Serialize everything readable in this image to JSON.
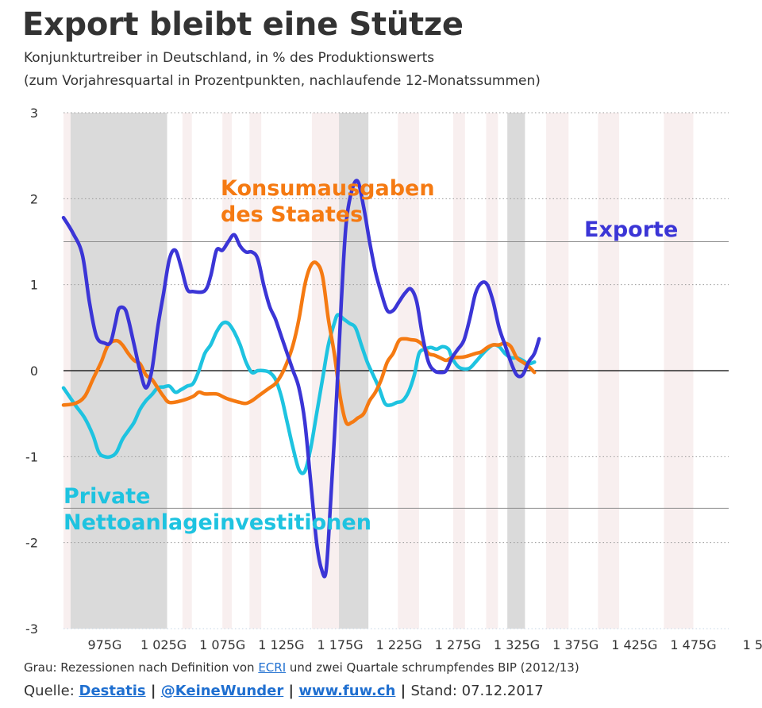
{
  "title": "Export bleibt eine Stütze",
  "subtitle1": "Konjunkturtreiber in Deutschland, in % des Produktionswerts",
  "subtitle2": "(zum Vorjahresquartal in Prozentpunkten, nachlaufende 12-Monatssummen)",
  "note": {
    "before": "Grau: Rezessionen nach Definition von ",
    "link": "ECRI",
    "after": " und zwei Quartale schrumpfendes BIP (2012/13)"
  },
  "source": {
    "label": "Quelle: ",
    "link1": "Destatis",
    "sep1": " | ",
    "link2": "@KeineWunder",
    "sep2": " | ",
    "link3": "www.fuw.ch",
    "sep3": " | ",
    "stand": "Stand: 07.12.2017"
  },
  "colors": {
    "exporte": "#3b35d6",
    "konsum": "#f57a12",
    "private": "#1ec3e0",
    "recession": "#dadada",
    "band": "#f8efef",
    "grid": "#999999",
    "zero": "#000000"
  },
  "chart_data": {
    "type": "line",
    "ylim": [
      -3,
      3
    ],
    "xlim": [
      940,
      1505
    ],
    "grid": true,
    "y_ticks": [
      3,
      2,
      1,
      0,
      -1,
      -2,
      -3
    ],
    "y_tick_labels": [
      "3",
      "2",
      "1",
      "0",
      "-1",
      "-2",
      "-3"
    ],
    "x_ticks": [
      975,
      1025,
      1075,
      1125,
      1175,
      1225,
      1275,
      1325,
      1375,
      1425,
      1475,
      1525
    ],
    "x_tick_labels": [
      "975G",
      "1 025G",
      "1 075G",
      "1 125G",
      "1 175G",
      "1 225G",
      "1 275G",
      "1 325G",
      "1 375G",
      "1 425G",
      "1 475G",
      "1 5"
    ],
    "recessions": [
      [
        946,
        1028
      ],
      [
        1174,
        1199
      ],
      [
        1317,
        1332
      ]
    ],
    "bands": [
      [
        940,
        946
      ],
      [
        980,
        986
      ],
      [
        1004,
        1011
      ],
      [
        1041,
        1049
      ],
      [
        1075,
        1083
      ],
      [
        1098,
        1108
      ],
      [
        1151,
        1174
      ],
      [
        1224,
        1242
      ],
      [
        1271,
        1281
      ],
      [
        1299,
        1309
      ],
      [
        1350,
        1369
      ],
      [
        1394,
        1412
      ],
      [
        1450,
        1475
      ]
    ],
    "series": [
      {
        "name": "Exporte",
        "color": "#3b35d6",
        "points": [
          [
            940,
            1.78
          ],
          [
            948,
            1.6
          ],
          [
            956,
            1.35
          ],
          [
            962,
            0.8
          ],
          [
            968,
            0.4
          ],
          [
            975,
            0.32
          ],
          [
            980,
            0.33
          ],
          [
            984,
            0.55
          ],
          [
            987,
            0.72
          ],
          [
            992,
            0.72
          ],
          [
            995,
            0.6
          ],
          [
            1000,
            0.3
          ],
          [
            1005,
            0.0
          ],
          [
            1010,
            -0.2
          ],
          [
            1015,
            0.0
          ],
          [
            1020,
            0.5
          ],
          [
            1025,
            0.9
          ],
          [
            1030,
            1.3
          ],
          [
            1035,
            1.4
          ],
          [
            1040,
            1.2
          ],
          [
            1045,
            0.95
          ],
          [
            1050,
            0.92
          ],
          [
            1060,
            0.93
          ],
          [
            1065,
            1.1
          ],
          [
            1070,
            1.4
          ],
          [
            1075,
            1.4
          ],
          [
            1080,
            1.5
          ],
          [
            1085,
            1.58
          ],
          [
            1090,
            1.45
          ],
          [
            1095,
            1.38
          ],
          [
            1100,
            1.38
          ],
          [
            1105,
            1.3
          ],
          [
            1110,
            1.0
          ],
          [
            1115,
            0.75
          ],
          [
            1120,
            0.6
          ],
          [
            1125,
            0.4
          ],
          [
            1130,
            0.2
          ],
          [
            1135,
            0.0
          ],
          [
            1140,
            -0.2
          ],
          [
            1145,
            -0.6
          ],
          [
            1150,
            -1.3
          ],
          [
            1155,
            -2.0
          ],
          [
            1159,
            -2.3
          ],
          [
            1163,
            -2.33
          ],
          [
            1167,
            -1.5
          ],
          [
            1172,
            -0.3
          ],
          [
            1176,
            0.8
          ],
          [
            1180,
            1.7
          ],
          [
            1185,
            2.1
          ],
          [
            1190,
            2.2
          ],
          [
            1195,
            1.9
          ],
          [
            1200,
            1.5
          ],
          [
            1205,
            1.15
          ],
          [
            1210,
            0.9
          ],
          [
            1215,
            0.7
          ],
          [
            1220,
            0.7
          ],
          [
            1225,
            0.8
          ],
          [
            1230,
            0.9
          ],
          [
            1235,
            0.95
          ],
          [
            1240,
            0.8
          ],
          [
            1245,
            0.4
          ],
          [
            1250,
            0.1
          ],
          [
            1255,
            0.0
          ],
          [
            1260,
            -0.02
          ],
          [
            1265,
            0.0
          ],
          [
            1270,
            0.15
          ],
          [
            1275,
            0.25
          ],
          [
            1280,
            0.35
          ],
          [
            1285,
            0.6
          ],
          [
            1290,
            0.9
          ],
          [
            1295,
            1.02
          ],
          [
            1300,
            1.0
          ],
          [
            1305,
            0.8
          ],
          [
            1310,
            0.5
          ],
          [
            1315,
            0.3
          ],
          [
            1320,
            0.1
          ],
          [
            1325,
            -0.05
          ],
          [
            1330,
            -0.05
          ],
          [
            1335,
            0.1
          ],
          [
            1340,
            0.2
          ],
          [
            1344,
            0.37
          ]
        ]
      },
      {
        "name": "Konsumausgaben des Staates",
        "color": "#f57a12",
        "points": [
          [
            940,
            -0.4
          ],
          [
            950,
            -0.38
          ],
          [
            958,
            -0.3
          ],
          [
            965,
            -0.1
          ],
          [
            972,
            0.1
          ],
          [
            978,
            0.3
          ],
          [
            985,
            0.35
          ],
          [
            990,
            0.3
          ],
          [
            995,
            0.2
          ],
          [
            1000,
            0.12
          ],
          [
            1005,
            0.08
          ],
          [
            1010,
            -0.05
          ],
          [
            1015,
            -0.1
          ],
          [
            1020,
            -0.2
          ],
          [
            1025,
            -0.3
          ],
          [
            1030,
            -0.37
          ],
          [
            1040,
            -0.35
          ],
          [
            1050,
            -0.3
          ],
          [
            1055,
            -0.25
          ],
          [
            1060,
            -0.27
          ],
          [
            1070,
            -0.27
          ],
          [
            1075,
            -0.3
          ],
          [
            1080,
            -0.33
          ],
          [
            1090,
            -0.37
          ],
          [
            1095,
            -0.38
          ],
          [
            1100,
            -0.35
          ],
          [
            1105,
            -0.3
          ],
          [
            1110,
            -0.25
          ],
          [
            1115,
            -0.2
          ],
          [
            1120,
            -0.15
          ],
          [
            1125,
            -0.05
          ],
          [
            1130,
            0.1
          ],
          [
            1135,
            0.3
          ],
          [
            1140,
            0.6
          ],
          [
            1145,
            1.0
          ],
          [
            1150,
            1.22
          ],
          [
            1155,
            1.25
          ],
          [
            1160,
            1.1
          ],
          [
            1165,
            0.6
          ],
          [
            1170,
            0.2
          ],
          [
            1175,
            -0.3
          ],
          [
            1180,
            -0.6
          ],
          [
            1185,
            -0.6
          ],
          [
            1190,
            -0.55
          ],
          [
            1195,
            -0.5
          ],
          [
            1200,
            -0.35
          ],
          [
            1205,
            -0.25
          ],
          [
            1210,
            -0.1
          ],
          [
            1215,
            0.1
          ],
          [
            1220,
            0.2
          ],
          [
            1225,
            0.35
          ],
          [
            1230,
            0.37
          ],
          [
            1235,
            0.36
          ],
          [
            1240,
            0.35
          ],
          [
            1245,
            0.3
          ],
          [
            1250,
            0.2
          ],
          [
            1255,
            0.18
          ],
          [
            1260,
            0.15
          ],
          [
            1265,
            0.12
          ],
          [
            1270,
            0.15
          ],
          [
            1280,
            0.16
          ],
          [
            1290,
            0.2
          ],
          [
            1295,
            0.22
          ],
          [
            1300,
            0.27
          ],
          [
            1305,
            0.3
          ],
          [
            1310,
            0.3
          ],
          [
            1315,
            0.32
          ],
          [
            1320,
            0.28
          ],
          [
            1325,
            0.15
          ],
          [
            1330,
            0.1
          ],
          [
            1335,
            0.05
          ],
          [
            1340,
            -0.02
          ]
        ]
      },
      {
        "name": "Private Nettoanlageinvestitionen",
        "color": "#1ec3e0",
        "points": [
          [
            940,
            -0.2
          ],
          [
            950,
            -0.4
          ],
          [
            958,
            -0.55
          ],
          [
            965,
            -0.75
          ],
          [
            970,
            -0.95
          ],
          [
            975,
            -1.0
          ],
          [
            980,
            -1.0
          ],
          [
            985,
            -0.95
          ],
          [
            990,
            -0.8
          ],
          [
            995,
            -0.7
          ],
          [
            1000,
            -0.6
          ],
          [
            1005,
            -0.45
          ],
          [
            1010,
            -0.35
          ],
          [
            1015,
            -0.28
          ],
          [
            1020,
            -0.2
          ],
          [
            1025,
            -0.19
          ],
          [
            1030,
            -0.18
          ],
          [
            1035,
            -0.25
          ],
          [
            1040,
            -0.22
          ],
          [
            1045,
            -0.18
          ],
          [
            1050,
            -0.15
          ],
          [
            1055,
            0.0
          ],
          [
            1060,
            0.2
          ],
          [
            1065,
            0.3
          ],
          [
            1070,
            0.45
          ],
          [
            1075,
            0.55
          ],
          [
            1080,
            0.55
          ],
          [
            1085,
            0.45
          ],
          [
            1090,
            0.3
          ],
          [
            1095,
            0.1
          ],
          [
            1100,
            -0.02
          ],
          [
            1105,
            0.0
          ],
          [
            1110,
            0.0
          ],
          [
            1115,
            -0.02
          ],
          [
            1120,
            -0.1
          ],
          [
            1125,
            -0.3
          ],
          [
            1130,
            -0.6
          ],
          [
            1135,
            -0.9
          ],
          [
            1140,
            -1.15
          ],
          [
            1145,
            -1.17
          ],
          [
            1150,
            -0.9
          ],
          [
            1155,
            -0.5
          ],
          [
            1160,
            -0.1
          ],
          [
            1165,
            0.3
          ],
          [
            1170,
            0.55
          ],
          [
            1173,
            0.65
          ],
          [
            1178,
            0.6
          ],
          [
            1183,
            0.55
          ],
          [
            1188,
            0.5
          ],
          [
            1193,
            0.3
          ],
          [
            1198,
            0.1
          ],
          [
            1203,
            -0.05
          ],
          [
            1208,
            -0.2
          ],
          [
            1213,
            -0.38
          ],
          [
            1218,
            -0.4
          ],
          [
            1223,
            -0.37
          ],
          [
            1228,
            -0.35
          ],
          [
            1233,
            -0.25
          ],
          [
            1238,
            -0.05
          ],
          [
            1242,
            0.2
          ],
          [
            1247,
            0.25
          ],
          [
            1252,
            0.27
          ],
          [
            1257,
            0.25
          ],
          [
            1262,
            0.28
          ],
          [
            1267,
            0.25
          ],
          [
            1270,
            0.15
          ],
          [
            1275,
            0.05
          ],
          [
            1280,
            0.02
          ],
          [
            1285,
            0.03
          ],
          [
            1290,
            0.1
          ],
          [
            1295,
            0.18
          ],
          [
            1300,
            0.25
          ],
          [
            1305,
            0.3
          ],
          [
            1310,
            0.28
          ],
          [
            1315,
            0.2
          ],
          [
            1320,
            0.15
          ],
          [
            1325,
            0.15
          ],
          [
            1330,
            0.12
          ],
          [
            1335,
            0.08
          ],
          [
            1340,
            0.1
          ]
        ]
      }
    ],
    "annotations": [
      {
        "lines": [
          "Konsumausgaben",
          "des Staates"
        ],
        "color": "#f57a12"
      },
      {
        "lines": [
          "Exporte"
        ],
        "color": "#3b35d6"
      },
      {
        "lines": [
          "Private",
          "Nettoanlageinvestitionen"
        ],
        "color": "#1ec3e0"
      }
    ]
  }
}
